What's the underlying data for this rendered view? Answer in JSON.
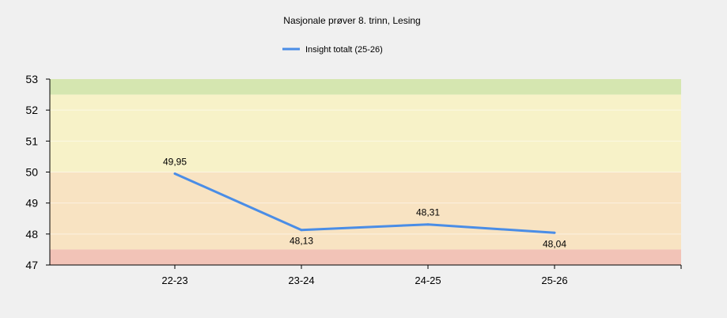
{
  "chart_data": {
    "type": "line",
    "title": "Nasjonale prøver 8. trinn, Lesing",
    "categories": [
      "22-23",
      "23-24",
      "24-25",
      "25-26"
    ],
    "series": [
      {
        "name": "Insight totalt (25-26)",
        "values": [
          49.95,
          48.13,
          48.31,
          48.04
        ],
        "labels": [
          "49,95",
          "48,13",
          "48,31",
          "48,04"
        ],
        "color": "#4a8de6"
      }
    ],
    "ylim": [
      47,
      53
    ],
    "yticks": [
      "53",
      "52",
      "51",
      "50",
      "49",
      "48",
      "47"
    ],
    "bands": [
      {
        "from": 52.5,
        "to": 53,
        "color": "#d5e6b0"
      },
      {
        "from": 50,
        "to": 52.5,
        "color": "#f7f2c8"
      },
      {
        "from": 47.5,
        "to": 50,
        "color": "#f8e3c2"
      },
      {
        "from": 47,
        "to": 47.5,
        "color": "#f2c3b7"
      }
    ],
    "legend_position": "top-center",
    "xlabel": "",
    "ylabel": ""
  }
}
